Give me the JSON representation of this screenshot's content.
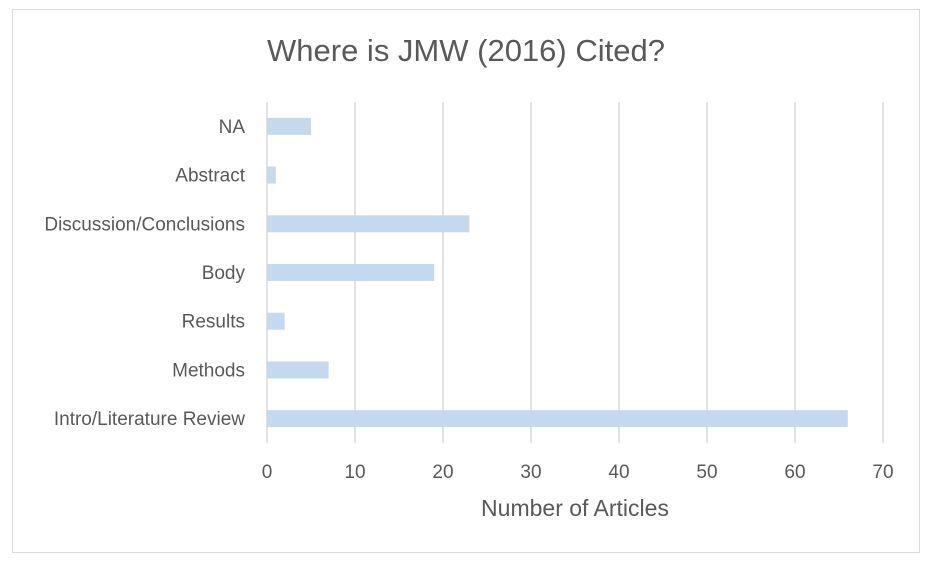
{
  "chart_data": {
    "type": "bar",
    "orientation": "horizontal",
    "title": "Where is JMW (2016) Cited?",
    "xlabel": "Number of Articles",
    "ylabel": "",
    "categories": [
      "Intro/Literature Review",
      "Methods",
      "Results",
      "Body",
      "Discussion/Conclusions",
      "Abstract",
      "NA"
    ],
    "values": [
      66,
      7,
      2,
      19,
      23,
      1,
      5
    ],
    "xlim": [
      0,
      70
    ],
    "x_ticks": [
      "0",
      "10",
      "20",
      "30",
      "40",
      "50",
      "60",
      "70"
    ],
    "grid": "vertical",
    "legend": "none",
    "bar_color": "#c5d9ee",
    "grid_color": "#d9d9d9",
    "text_color": "#595959"
  }
}
